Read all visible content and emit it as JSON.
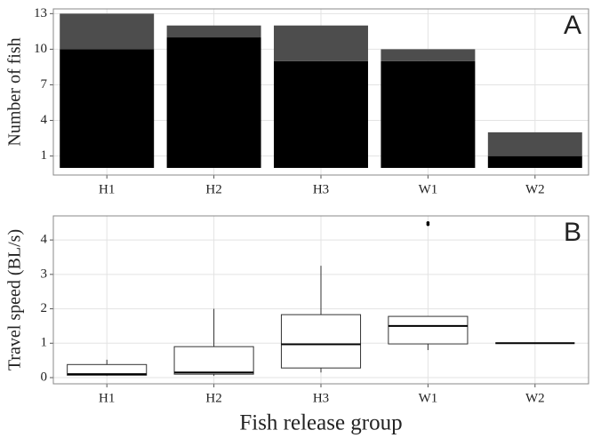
{
  "chart_data": [
    {
      "type": "bar",
      "panel_label": "A",
      "y_label": "Number of fish",
      "categories": [
        "H1",
        "H2",
        "H3",
        "W1",
        "W2"
      ],
      "series": [
        {
          "color": "#000000",
          "values": [
            10,
            11,
            9,
            9,
            1
          ]
        },
        {
          "color": "#4d4d4d",
          "values": [
            3,
            1,
            3,
            1,
            2
          ]
        }
      ],
      "ylim": [
        -0.6,
        13.4
      ],
      "yticks": [
        1,
        4,
        7,
        10,
        13
      ],
      "grid": true
    },
    {
      "type": "box",
      "panel_label": "B",
      "y_label": "Travel speed (BL/s)",
      "x_label": "Fish release group",
      "categories": [
        "H1",
        "H2",
        "H3",
        "W1",
        "W2"
      ],
      "boxes": [
        {
          "min": 0.05,
          "q1": 0.07,
          "median": 0.1,
          "q3": 0.38,
          "max": 0.52,
          "outliers": []
        },
        {
          "min": 0.05,
          "q1": 0.1,
          "median": 0.15,
          "q3": 0.9,
          "max": 2.0,
          "outliers": []
        },
        {
          "min": 0.15,
          "q1": 0.28,
          "median": 0.97,
          "q3": 1.83,
          "max": 3.25,
          "outliers": []
        },
        {
          "min": 0.8,
          "q1": 0.98,
          "median": 1.5,
          "q3": 1.78,
          "max": 1.78,
          "outliers": [
            4.45,
            4.5
          ]
        },
        {
          "min": 1,
          "q1": 1,
          "median": 1,
          "q3": 1,
          "max": 1,
          "outliers": []
        }
      ],
      "ylim": [
        -0.18,
        4.7
      ],
      "yticks": [
        0,
        1,
        2,
        3,
        4
      ],
      "grid": true
    }
  ]
}
